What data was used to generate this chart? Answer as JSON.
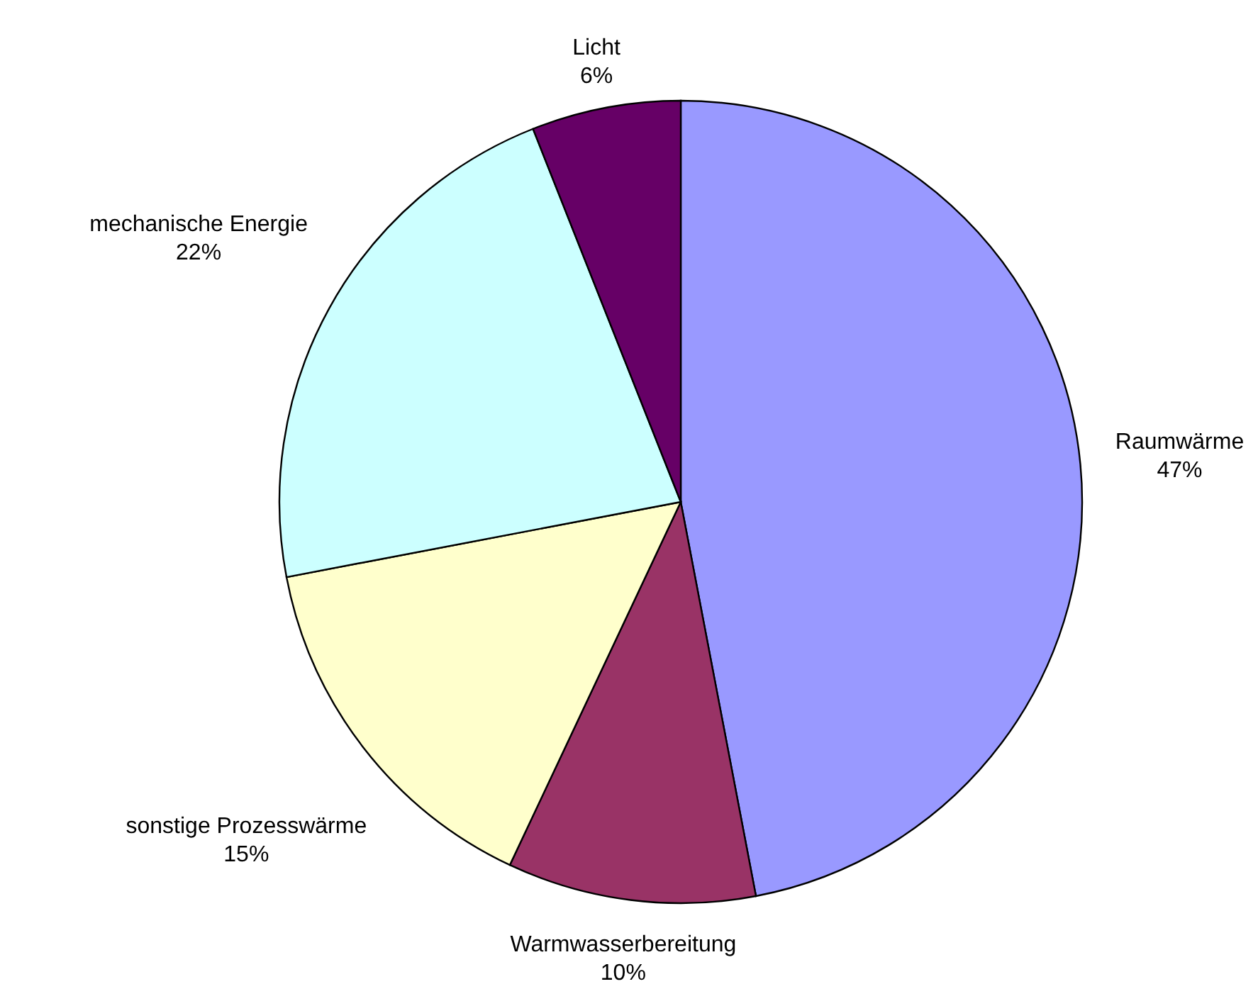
{
  "chart_data": {
    "type": "pie",
    "categories": [
      "Raumwärme",
      "Warmwasserbereitung",
      "sonstige Prozesswärme",
      "mechanische Energie",
      "Licht"
    ],
    "values": [
      47,
      10,
      15,
      22,
      6
    ],
    "value_labels": [
      "47%",
      "10%",
      "15%",
      "22%",
      "6%"
    ],
    "colors": [
      "#9999ff",
      "#993366",
      "#ffffcc",
      "#ccffff",
      "#660066"
    ],
    "legend": false
  }
}
